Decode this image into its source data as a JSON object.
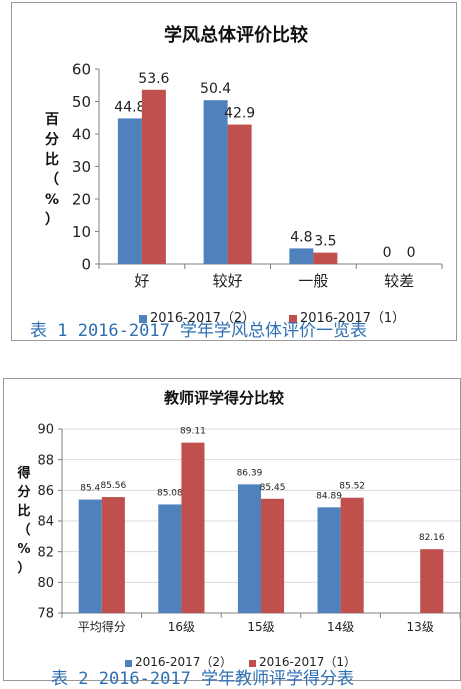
{
  "chart_data": [
    {
      "type": "bar",
      "title": "学风总体评价比较",
      "ylabel": "百分比（%）",
      "ylabel_chars": [
        "百",
        "分",
        "比",
        "（",
        "%",
        "）"
      ],
      "categories": [
        "好",
        "较好",
        "一般",
        "较差"
      ],
      "series": [
        {
          "name": "2016-2017（2）",
          "color": "#4f81bd",
          "values": [
            44.8,
            50.4,
            4.8,
            0
          ]
        },
        {
          "name": "2016-2017（1）",
          "color": "#c0504d",
          "values": [
            53.6,
            42.9,
            3.5,
            0
          ]
        }
      ],
      "value_labels": [
        [
          "44.8",
          "50.4",
          "4.8",
          "0"
        ],
        [
          "53.6",
          "42.9",
          "3.5",
          "0"
        ]
      ],
      "ylim": [
        0,
        60
      ],
      "yticks": [
        "0",
        "10",
        "20",
        "30",
        "40",
        "50",
        "60"
      ],
      "grid": false,
      "legend": "bottom",
      "caption": "表 1   2016-2017 学年学风总体评价一览表"
    },
    {
      "type": "bar",
      "title": "教师评学得分比较",
      "ylabel": "得分比（%）",
      "ylabel_chars": [
        "得",
        "分",
        "比",
        "（",
        "%",
        "）"
      ],
      "categories": [
        "平均得分",
        "16级",
        "15级",
        "14级",
        "13级"
      ],
      "series": [
        {
          "name": "2016-2017（2）",
          "color": "#4f81bd",
          "values": [
            85.4,
            85.08,
            86.39,
            84.89,
            null
          ]
        },
        {
          "name": "2016-2017（1）",
          "color": "#c0504d",
          "values": [
            85.56,
            89.11,
            85.45,
            85.52,
            82.16
          ]
        }
      ],
      "value_labels": [
        [
          "85.4",
          "85.08",
          "86.39",
          "84.89",
          ""
        ],
        [
          "85.56",
          "89.11",
          "85.45",
          "85.52",
          "82.16"
        ]
      ],
      "ylim": [
        78,
        90
      ],
      "yticks": [
        "78",
        "80",
        "82",
        "84",
        "86",
        "88",
        "90"
      ],
      "grid": true,
      "legend": "bottom",
      "caption": "表 2   2016-2017 学年教师评学得分表"
    }
  ]
}
